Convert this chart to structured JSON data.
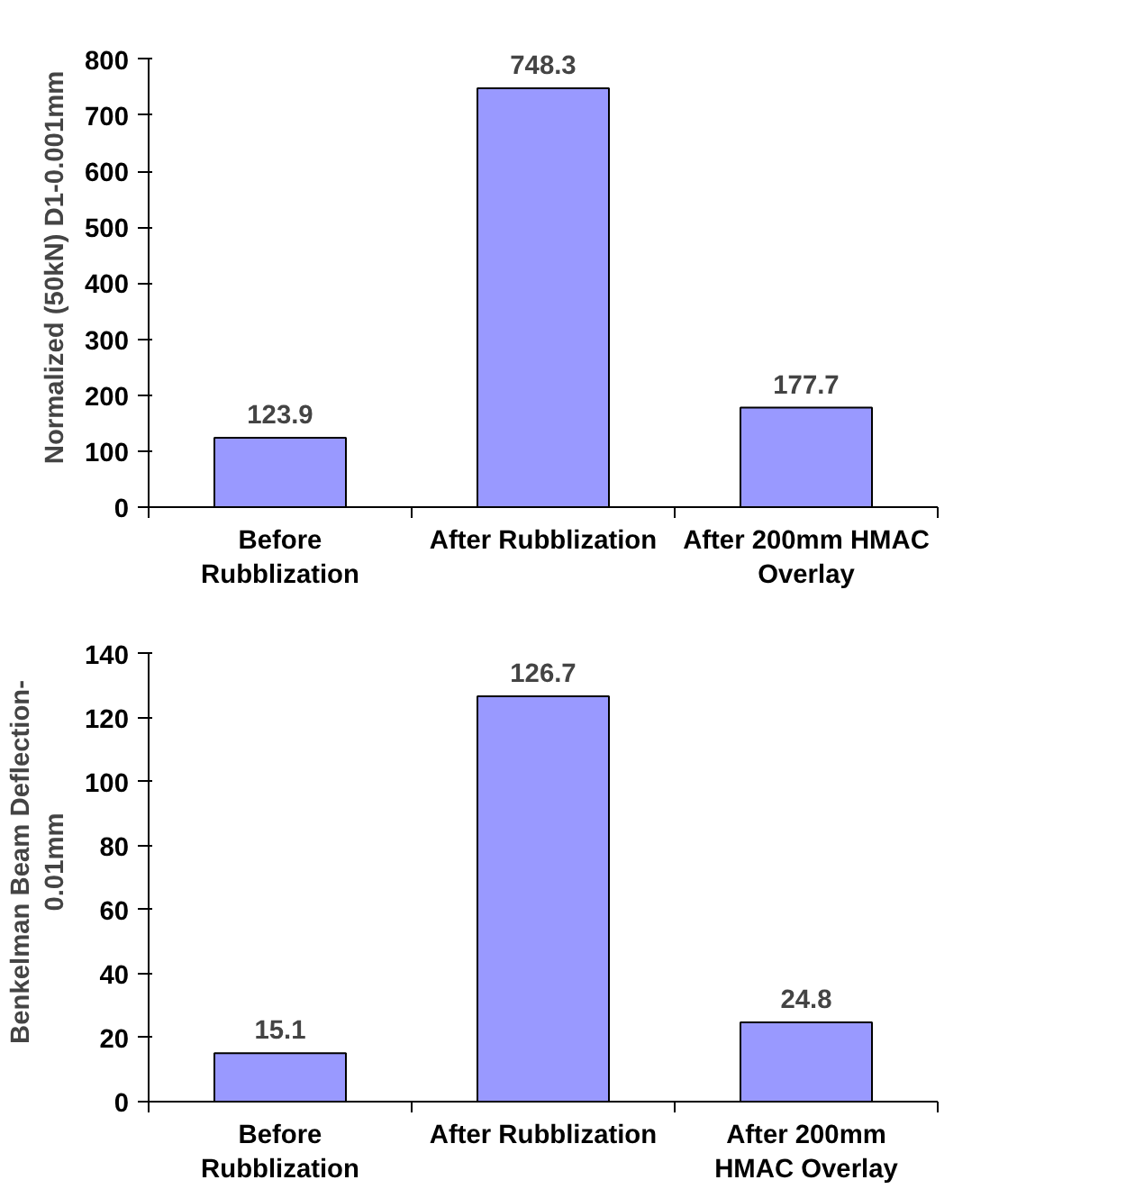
{
  "chart_data": [
    {
      "type": "bar",
      "ylabel": "Normalized (50kN) D1-0.001mm",
      "categories": [
        "Before\nRubblization",
        "After Rubblization",
        "After 200mm HMAC\nOverlay"
      ],
      "values": [
        123.9,
        748.3,
        177.7
      ],
      "color": "#9999ff",
      "ylim": [
        0,
        800
      ],
      "yticks": [
        0,
        100,
        200,
        300,
        400,
        500,
        600,
        700,
        800
      ],
      "data_labels": true,
      "grid": false,
      "legend": false
    },
    {
      "type": "bar",
      "ylabel": "Benkelman Beam Deflection-\n0.01mm",
      "categories": [
        "Before\nRubblization",
        "After Rubblization",
        "After 200mm\nHMAC Overlay"
      ],
      "values": [
        15.1,
        126.7,
        24.8
      ],
      "color": "#9999ff",
      "ylim": [
        0,
        140
      ],
      "yticks": [
        0,
        20,
        40,
        60,
        80,
        100,
        120,
        140
      ],
      "data_labels": true,
      "grid": false,
      "legend": false
    }
  ]
}
